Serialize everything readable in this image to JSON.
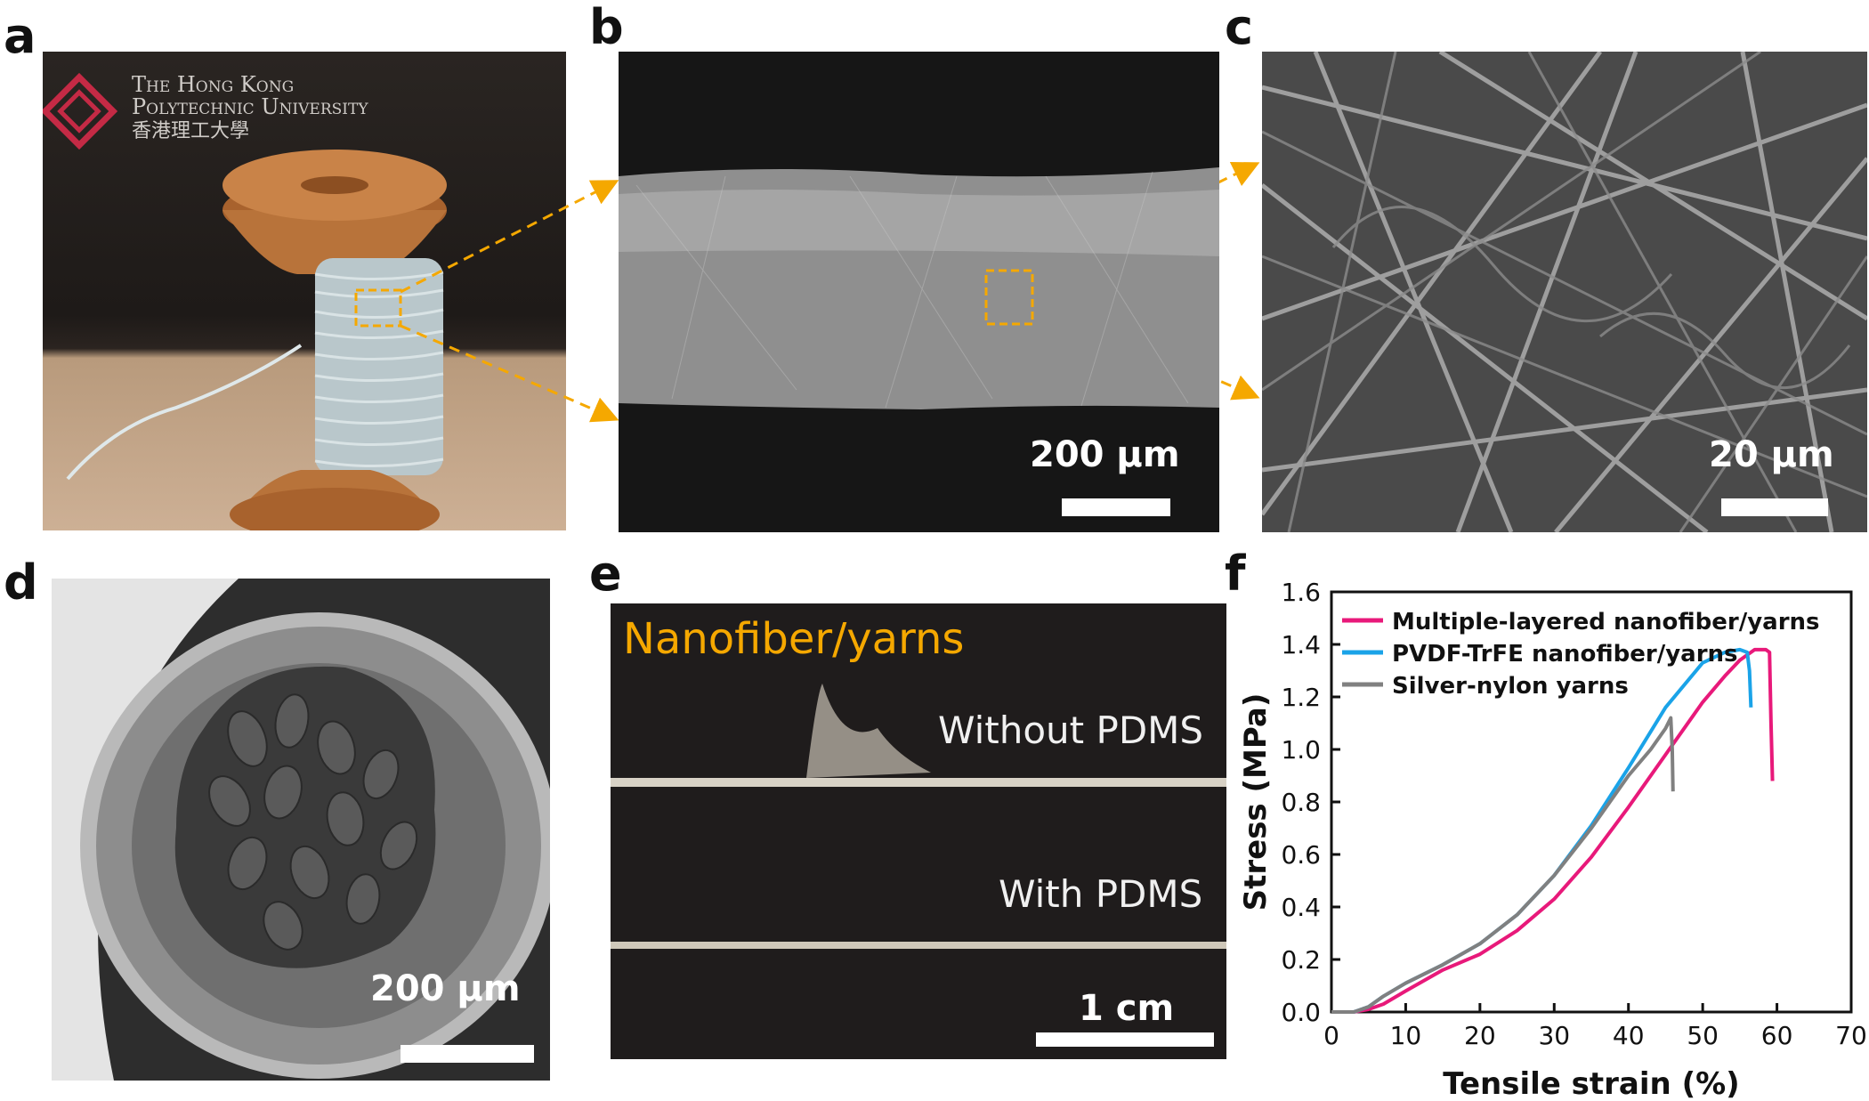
{
  "panels": {
    "a": "a",
    "b": "b",
    "c": "c",
    "d": "d",
    "e": "e",
    "f": "f"
  },
  "photo_a": {
    "logo_line1": "The Hong Kong",
    "logo_line2": "Polytechnic University",
    "logo_line3": "香港理工大學"
  },
  "sem_b": {
    "scale_label": "200 µm"
  },
  "sem_c": {
    "scale_label": "20 µm"
  },
  "sem_d": {
    "scale_label": "200 µm"
  },
  "photo_e": {
    "title": "Nanofiber/yarns",
    "label_without": "Without PDMS",
    "label_with": "With PDMS",
    "scale_label": "1 cm"
  },
  "colors": {
    "accent_orange": "#f5a800",
    "series_multiple": "#e8197a",
    "series_pvdf": "#1aa3e8",
    "series_silver": "#808080"
  },
  "chart_data": {
    "type": "line",
    "title": "",
    "xlabel": "Tensile strain (%)",
    "ylabel": "Stress (MPa)",
    "xlim": [
      0,
      70
    ],
    "ylim": [
      0,
      1.6
    ],
    "xticks": [
      0,
      10,
      20,
      30,
      40,
      50,
      60,
      70
    ],
    "yticks": [
      0.0,
      0.2,
      0.4,
      0.6,
      0.8,
      1.0,
      1.2,
      1.4,
      1.6
    ],
    "ytick_labels": [
      "0.0",
      "0.2",
      "0.4",
      "0.6",
      "0.8",
      "1.0",
      "1.2",
      "1.4",
      "1.6"
    ],
    "legend": "top-left",
    "series": [
      {
        "name": "Multiple-layered nanofiber/yarns",
        "color": "#e8197a",
        "x": [
          0,
          3,
          5,
          7,
          10,
          15,
          20,
          25,
          30,
          35,
          40,
          45,
          50,
          53,
          55,
          57,
          58.5,
          59,
          59.2,
          59.4
        ],
        "y": [
          0,
          0,
          0.01,
          0.03,
          0.08,
          0.16,
          0.22,
          0.31,
          0.43,
          0.59,
          0.78,
          0.98,
          1.18,
          1.28,
          1.34,
          1.38,
          1.38,
          1.37,
          1.1,
          0.88
        ]
      },
      {
        "name": "PVDF-TrFE nanofiber/yarns",
        "color": "#1aa3e8",
        "x": [
          0,
          3,
          5,
          7,
          10,
          15,
          20,
          25,
          30,
          35,
          40,
          45,
          50,
          53,
          55,
          56,
          56.3,
          56.5
        ],
        "y": [
          0,
          0,
          0.02,
          0.06,
          0.11,
          0.18,
          0.26,
          0.37,
          0.52,
          0.71,
          0.93,
          1.16,
          1.33,
          1.37,
          1.38,
          1.37,
          1.3,
          1.16
        ]
      },
      {
        "name": "Silver-nylon yarns",
        "color": "#808080",
        "x": [
          0,
          3,
          5,
          7,
          10,
          15,
          20,
          25,
          30,
          35,
          40,
          43,
          45,
          45.7,
          45.9,
          46
        ],
        "y": [
          0,
          0,
          0.02,
          0.06,
          0.11,
          0.18,
          0.26,
          0.37,
          0.52,
          0.7,
          0.9,
          1.0,
          1.08,
          1.12,
          1.0,
          0.84
        ]
      }
    ]
  }
}
